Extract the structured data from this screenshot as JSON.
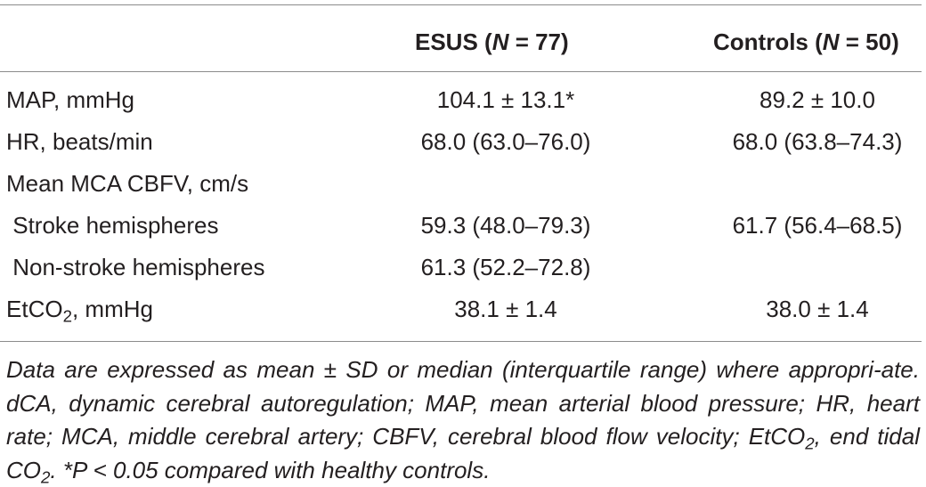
{
  "table": {
    "columns": [
      "",
      "ESUS (N = 77)",
      "Controls (N = 50)"
    ],
    "header": {
      "esus": {
        "name": "ESUS (",
        "n_symbol": "N",
        "n_value": " = 77)"
      },
      "controls": {
        "name": "Controls (",
        "n_symbol": "N",
        "n_value": " = 50)"
      }
    },
    "rows": [
      {
        "label": "MAP, mmHg",
        "esus": "104.1 ± 13.1*",
        "controls": "89.2 ± 10.0"
      },
      {
        "label": "HR, beats/min",
        "esus": "68.0 (63.0–76.0)",
        "controls": "68.0 (63.8–74.3)"
      },
      {
        "label": "Mean MCA CBFV, cm/s",
        "esus": "",
        "controls": ""
      },
      {
        "label": " Stroke hemispheres",
        "esus": "59.3 (48.0–79.3)",
        "controls": "61.7 (56.4–68.5)"
      },
      {
        "label": " Non-stroke hemispheres",
        "esus": "61.3 (52.2–72.8)",
        "controls": ""
      },
      {
        "label_prefix": "EtCO",
        "label_sub": "2",
        "label_suffix": ", mmHg",
        "esus": "38.1 ± 1.4",
        "controls": "38.0 ± 1.4"
      }
    ],
    "footnote": {
      "part1": "Data are expressed as mean ± SD or median (interquartile range) where appropri-ate. dCA, dynamic cerebral autoregulation; MAP, mean arterial blood pressure; HR, heart rate; MCA, middle cerebral artery; CBFV, cerebral blood flow velocity; EtCO",
      "sub1": "2",
      "part2": ", end tidal CO",
      "sub2": "2",
      "part3": ". *P < 0.05 compared with healthy controls."
    }
  }
}
